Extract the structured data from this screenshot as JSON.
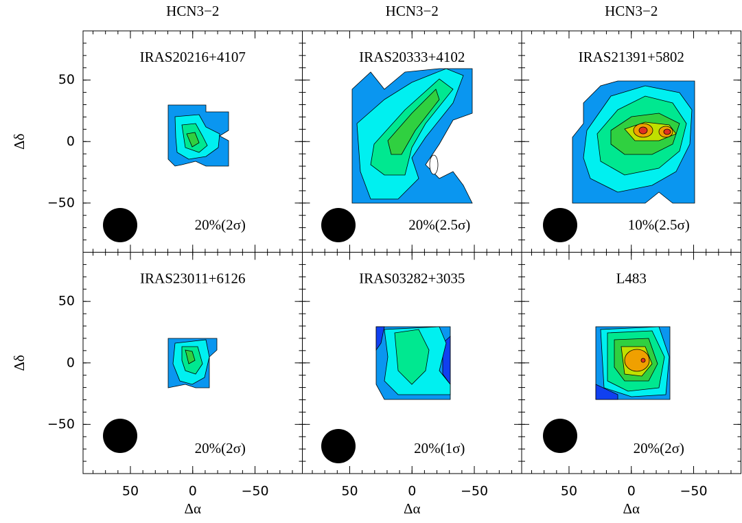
{
  "chart_data": [
    {
      "type": "contour",
      "title": "HCN3−2",
      "name": "IRAS20216+4107",
      "annotation": "20%(2σ)",
      "ylabel": "Δδ",
      "xlim": [
        88,
        -88
      ],
      "ylim": [
        -90,
        90
      ],
      "xticks": [
        50,
        0,
        -50
      ],
      "yticks": [
        50,
        0,
        {
          "value": -50,
          "label": "−50"
        }
      ]
    },
    {
      "type": "contour",
      "title": "HCN3−2",
      "name": "IRAS20333+4102",
      "annotation": "20%(2.5σ)",
      "xlim": [
        88,
        -88
      ],
      "ylim": [
        -90,
        90
      ],
      "xticks": [
        50,
        0,
        -50
      ],
      "yticks": [
        50,
        0,
        -50
      ]
    },
    {
      "type": "contour",
      "title": "HCN3−2",
      "name": "IRAS21391+5802",
      "annotation": "10%(2.5σ)",
      "xlim": [
        88,
        -88
      ],
      "ylim": [
        -90,
        90
      ],
      "xticks": [
        50,
        0,
        -50
      ],
      "yticks": [
        50,
        0,
        -50
      ]
    },
    {
      "type": "contour",
      "name": "IRAS23011+6126",
      "annotation": "20%(2σ)",
      "xlabel": "Δα",
      "ylabel": "Δδ",
      "xlim": [
        88,
        -88
      ],
      "ylim": [
        -90,
        90
      ],
      "xticks": [
        50,
        0,
        {
          "value": -50,
          "label": "−50"
        }
      ],
      "yticks": [
        50,
        0,
        {
          "value": -50,
          "label": "−50"
        }
      ]
    },
    {
      "type": "contour",
      "name": "IRAS03282+3035",
      "annotation": "20%(1σ)",
      "xlabel": "Δα",
      "xlim": [
        88,
        -88
      ],
      "ylim": [
        -90,
        90
      ],
      "xticks": [
        50,
        0,
        {
          "value": -50,
          "label": "−50"
        }
      ],
      "yticks": [
        50,
        0,
        -50
      ]
    },
    {
      "type": "contour",
      "name": "L483",
      "annotation": "20%(2σ)",
      "xlabel": "Δα",
      "xlim": [
        88,
        -88
      ],
      "ylim": [
        -90,
        90
      ],
      "xticks": [
        50,
        0,
        {
          "value": -50,
          "label": "−50"
        }
      ],
      "yticks": [
        50,
        0,
        -50
      ]
    }
  ]
}
